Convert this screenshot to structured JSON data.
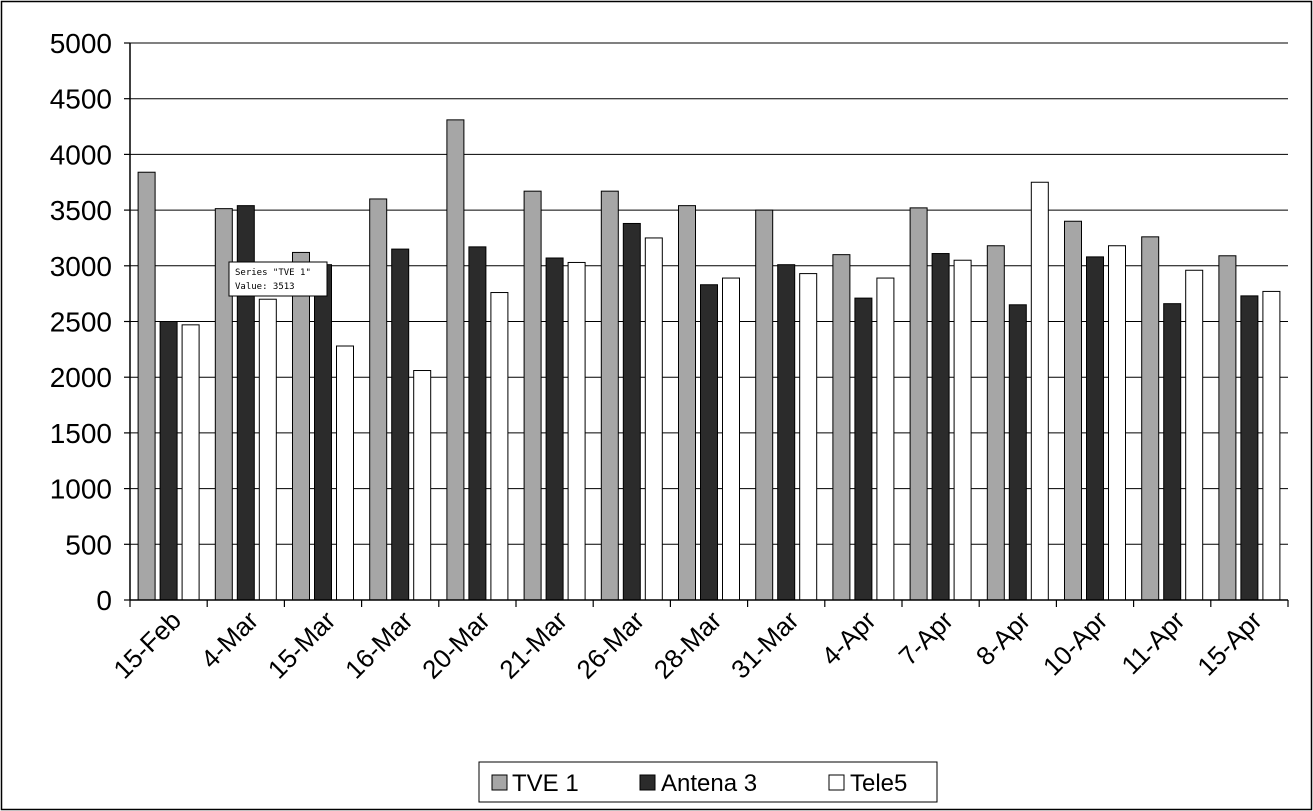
{
  "chart_data": {
    "type": "bar",
    "title": "",
    "xlabel": "",
    "ylabel": "",
    "categories": [
      "15-Feb",
      "4-Mar",
      "15-Mar",
      "16-Mar",
      "20-Mar",
      "21-Mar",
      "26-Mar",
      "28-Mar",
      "31-Mar",
      "4-Apr",
      "7-Apr",
      "8-Apr",
      "10-Apr",
      "11-Apr",
      "15-Apr"
    ],
    "series": [
      {
        "name": "TVE 1",
        "color": "#a6a6a6",
        "values": [
          3840,
          3513,
          3120,
          3600,
          4310,
          3670,
          3670,
          3540,
          3500,
          3100,
          3520,
          3180,
          3400,
          3260,
          3090
        ]
      },
      {
        "name": "Antena 3",
        "color": "#2b2b2b",
        "values": [
          2500,
          3540,
          3010,
          3150,
          3170,
          3070,
          3380,
          2830,
          3010,
          2710,
          3110,
          2650,
          3080,
          2660,
          2730
        ]
      },
      {
        "name": "Tele5",
        "color": "#ffffff",
        "values": [
          2470,
          2700,
          2280,
          2060,
          2760,
          3030,
          3250,
          2890,
          2930,
          2890,
          3050,
          3750,
          3180,
          2960,
          2770
        ]
      }
    ],
    "ylim": [
      0,
      5000
    ],
    "yticks": [
      "0",
      "500",
      "1000",
      "1500",
      "2000",
      "2500",
      "3000",
      "3500",
      "4000",
      "4500",
      "5000"
    ],
    "grid": true,
    "legend_position": "bottom",
    "tooltip": {
      "line1": "Series \"TVE 1\"",
      "line2": "Value: 3513"
    }
  }
}
